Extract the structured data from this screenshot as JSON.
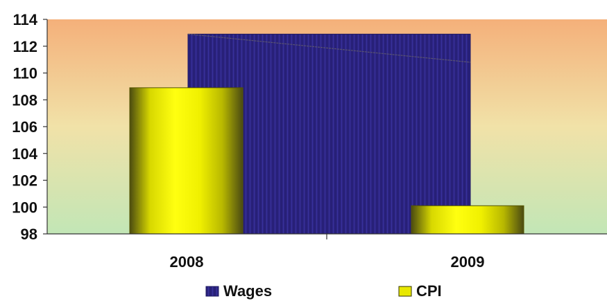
{
  "chart_data": {
    "type": "bar",
    "categories": [
      "2008",
      "2009"
    ],
    "ylim": [
      98,
      114
    ],
    "yticks": [
      98,
      100,
      102,
      104,
      106,
      108,
      110,
      112,
      114
    ],
    "series": [
      {
        "name": "Wages",
        "color": "#2b237f",
        "values": [
          112.9,
          112.9
        ],
        "trend_values": [
          112.9,
          110.8
        ]
      },
      {
        "name": "CPI",
        "color": "#e8e800",
        "values": [
          108.9,
          100.1
        ]
      }
    ],
    "background_gradient": [
      "#f4b07a",
      "#f1e2a8",
      "#c9e8b4"
    ],
    "legend_position": "bottom",
    "grid": false
  }
}
